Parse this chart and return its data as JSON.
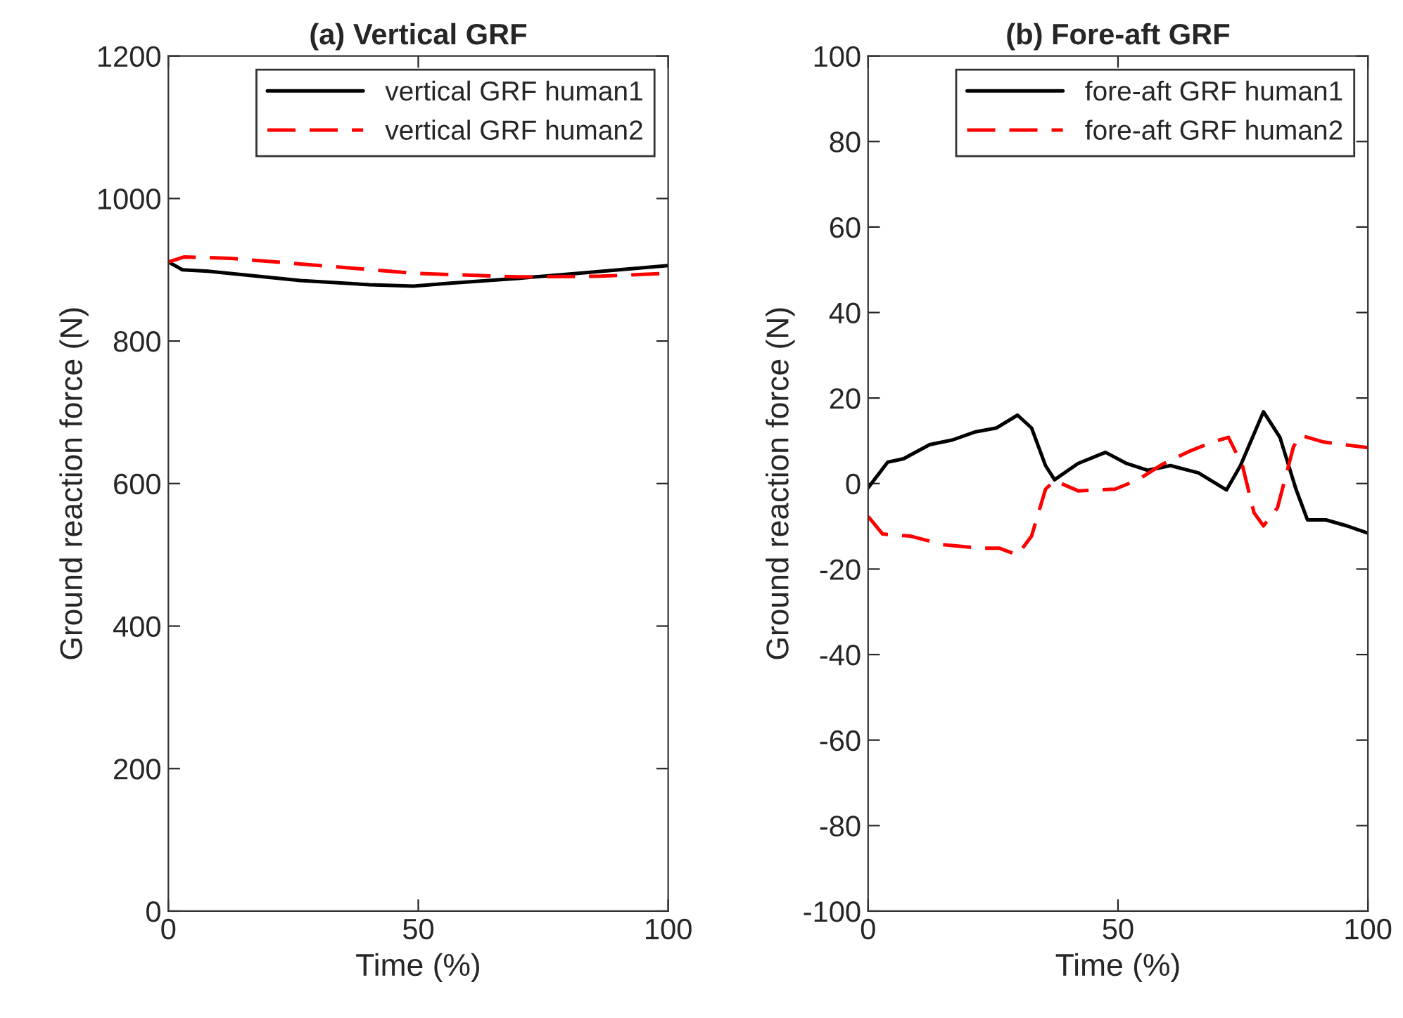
{
  "chart_data": [
    {
      "type": "line",
      "title": "(a) Vertical GRF",
      "xlabel": "Time (%)",
      "ylabel": "Ground reaction force (N)",
      "xlim": [
        0,
        100
      ],
      "xticks": [
        0,
        50,
        100
      ],
      "ylim": [
        0,
        1200
      ],
      "yticks": [
        0,
        200,
        400,
        600,
        800,
        1000,
        1200
      ],
      "grid": false,
      "legend": "top right",
      "marker": "none",
      "series": [
        {
          "name": "vertical GRF human1",
          "color": "#000000",
          "line_style": "solid",
          "x": [
            0,
            2.8,
            7.9,
            26.4,
            40.3,
            49,
            56,
            70,
            82,
            100
          ],
          "values": [
            911,
            900,
            898,
            885,
            879,
            877,
            881,
            888,
            895,
            906
          ]
        },
        {
          "name": "vertical GRF human2",
          "color": "#ff0000",
          "line_style": "dashed",
          "x": [
            0,
            3.2,
            12.5,
            35.6,
            49.5,
            70,
            86.6,
            100
          ],
          "values": [
            911,
            918,
            916,
            903,
            895,
            890,
            891,
            895
          ]
        }
      ]
    },
    {
      "type": "line",
      "title": "(b) Fore-aft GRF",
      "xlabel": "Time (%)",
      "ylabel": "Ground reaction force (N)",
      "xlim": [
        0,
        100
      ],
      "xticks": [
        0,
        50,
        100
      ],
      "ylim": [
        -100,
        100
      ],
      "yticks": [
        -100,
        -80,
        -60,
        -40,
        -20,
        0,
        20,
        40,
        60,
        80,
        100
      ],
      "grid": false,
      "legend": "top right",
      "marker": "none",
      "series": [
        {
          "name": "fore-aft GRF human1",
          "color": "#000000",
          "line_style": "solid",
          "x": [
            0,
            3.9,
            7.1,
            12.3,
            16.9,
            21.5,
            25.7,
            29.9,
            32.7,
            35.5,
            37.3,
            42,
            47.5,
            51.7,
            55.9,
            60.5,
            66.1,
            71.7,
            74.5,
            79.1,
            82.4,
            85.6,
            87.9,
            91.6,
            95.8,
            100
          ],
          "values": [
            -1,
            5,
            5.8,
            9.1,
            10.2,
            12.1,
            13,
            16,
            13,
            4.2,
            0.9,
            4.7,
            7.3,
            4.7,
            3.1,
            4.2,
            2.5,
            -1.5,
            4.2,
            16.8,
            10.8,
            -1.3,
            -8.5,
            -8.5,
            -9.9,
            -11.6
          ]
        },
        {
          "name": "fore-aft GRF human2",
          "color": "#ff0000",
          "line_style": "dashed",
          "x": [
            0,
            2.9,
            8.5,
            15,
            22.5,
            26.2,
            29.9,
            32.7,
            35.5,
            37.3,
            42,
            49.4,
            54,
            58.7,
            64.2,
            68.9,
            72.1,
            74.9,
            77.2,
            79.1,
            81.9,
            85.1,
            86.5,
            91.2,
            100
          ],
          "values": [
            -7.7,
            -11.8,
            -12.3,
            -14.3,
            -15.1,
            -15.1,
            -16.7,
            -12.3,
            -1.3,
            0.7,
            -1.7,
            -1.3,
            0.9,
            4.4,
            7.5,
            9.7,
            10.8,
            4.2,
            -6.8,
            -9.9,
            -5.7,
            8.6,
            11.3,
            9.7,
            8.4
          ]
        }
      ]
    }
  ]
}
